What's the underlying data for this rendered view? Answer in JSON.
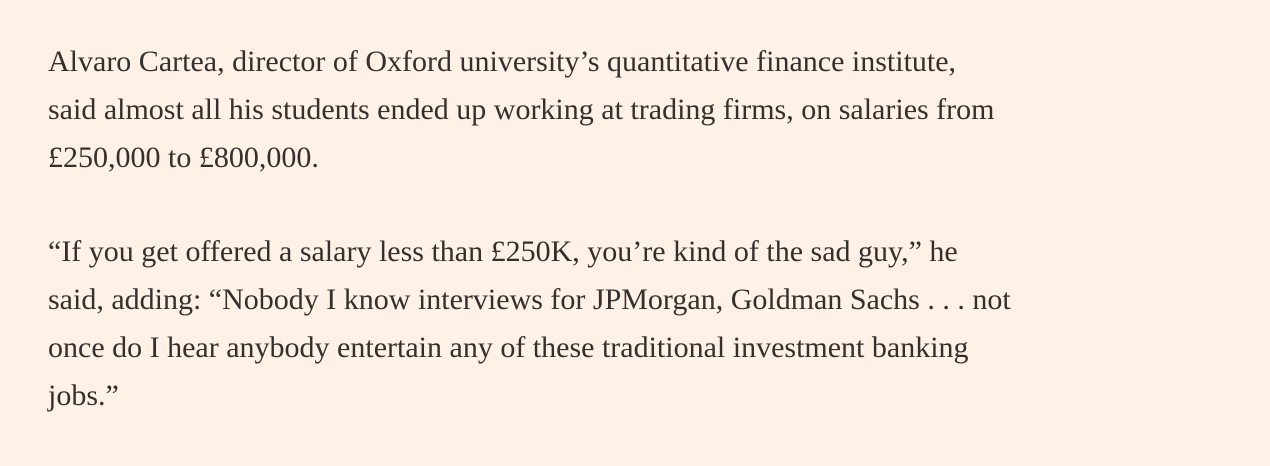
{
  "paragraphs": [
    {
      "lines": [
        "Alvaro Cartea, director of Oxford university’s quantitative finance institute,",
        "said almost all his students ended up working at trading firms, on salaries from",
        "£250,000 to £800,000."
      ]
    },
    {
      "lines": [
        "“If you get offered a salary less than £250K, you’re kind of the sad guy,” he",
        "said, adding: “Nobody I know interviews for JPMorgan, Goldman Sachs . . . not",
        "once do I hear anybody entertain any of these traditional investment banking",
        "jobs.”"
      ]
    }
  ]
}
